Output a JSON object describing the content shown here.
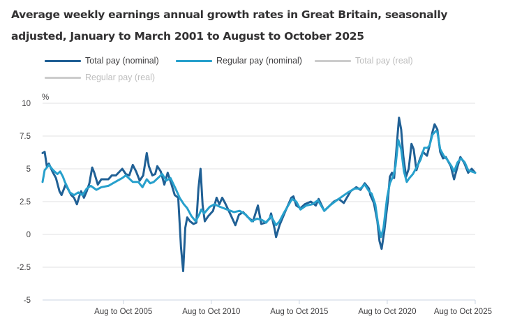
{
  "chart_data": {
    "type": "line",
    "title": "Average weekly earnings annual growth rates in Great Britain, seasonally adjusted, January to March 2001 to August to October 2025",
    "ylabel": "%",
    "xlabel": "",
    "ylim": [
      -5,
      10
    ],
    "yticks": [
      10,
      7.5,
      5,
      2.5,
      0,
      -2.5,
      -5
    ],
    "ytick_labels": [
      "10",
      "7.5",
      "5",
      "2.5",
      "0",
      "-2.5",
      "-5"
    ],
    "xlim": [
      2001.08,
      2025.67
    ],
    "xticks": [
      2005.67,
      2010.67,
      2015.67,
      2020.67,
      2025.67
    ],
    "xtick_labels": [
      "Aug to Oct 2005",
      "Aug to Oct 2010",
      "Aug to Oct 2015",
      "Aug to Oct 2020",
      "Aug to Oct 2025"
    ],
    "grid": true,
    "legend_position": "top",
    "series": [
      {
        "name": "Total pay (nominal)",
        "color": "#206095",
        "visible": true,
        "points": [
          [
            2001.08,
            6.2
          ],
          [
            2001.2,
            6.3
          ],
          [
            2001.32,
            5.2
          ],
          [
            2001.44,
            5.4
          ],
          [
            2001.64,
            4.8
          ],
          [
            2001.84,
            4.3
          ],
          [
            2002.04,
            3.3
          ],
          [
            2002.16,
            3.0
          ],
          [
            2002.39,
            3.8
          ],
          [
            2002.55,
            3.4
          ],
          [
            2002.71,
            3.0
          ],
          [
            2002.87,
            2.8
          ],
          [
            2003.03,
            2.3
          ],
          [
            2003.19,
            3.0
          ],
          [
            2003.27,
            3.3
          ],
          [
            2003.43,
            2.8
          ],
          [
            2003.59,
            3.3
          ],
          [
            2003.74,
            3.9
          ],
          [
            2003.9,
            5.1
          ],
          [
            2004.02,
            4.7
          ],
          [
            2004.22,
            3.8
          ],
          [
            2004.42,
            4.2
          ],
          [
            2004.82,
            4.2
          ],
          [
            2005.02,
            4.5
          ],
          [
            2005.25,
            4.5
          ],
          [
            2005.61,
            5.0
          ],
          [
            2005.81,
            4.6
          ],
          [
            2006.01,
            4.5
          ],
          [
            2006.21,
            5.3
          ],
          [
            2006.4,
            4.8
          ],
          [
            2006.6,
            4.1
          ],
          [
            2006.8,
            4.5
          ],
          [
            2007.0,
            6.2
          ],
          [
            2007.12,
            5.2
          ],
          [
            2007.32,
            4.5
          ],
          [
            2007.48,
            4.6
          ],
          [
            2007.6,
            5.2
          ],
          [
            2007.8,
            4.8
          ],
          [
            2008.0,
            3.8
          ],
          [
            2008.19,
            4.7
          ],
          [
            2008.39,
            3.9
          ],
          [
            2008.59,
            3.0
          ],
          [
            2008.79,
            2.8
          ],
          [
            2008.95,
            -1.0
          ],
          [
            2009.07,
            -2.8
          ],
          [
            2009.19,
            0.5
          ],
          [
            2009.3,
            1.3
          ],
          [
            2009.46,
            1.0
          ],
          [
            2009.66,
            0.8
          ],
          [
            2009.82,
            0.9
          ],
          [
            2009.94,
            3.5
          ],
          [
            2010.06,
            5.0
          ],
          [
            2010.18,
            2.2
          ],
          [
            2010.3,
            1.0
          ],
          [
            2010.5,
            1.4
          ],
          [
            2010.77,
            1.8
          ],
          [
            2010.97,
            2.8
          ],
          [
            2011.13,
            2.3
          ],
          [
            2011.29,
            2.8
          ],
          [
            2011.45,
            2.4
          ],
          [
            2011.77,
            1.5
          ],
          [
            2012.04,
            0.7
          ],
          [
            2012.24,
            1.5
          ],
          [
            2012.48,
            1.7
          ],
          [
            2012.76,
            1.3
          ],
          [
            2013.04,
            1.0
          ],
          [
            2013.32,
            2.2
          ],
          [
            2013.51,
            0.8
          ],
          [
            2013.75,
            0.9
          ],
          [
            2013.99,
            1.2
          ],
          [
            2014.07,
            1.6
          ],
          [
            2014.27,
            0.4
          ],
          [
            2014.35,
            -0.2
          ],
          [
            2014.55,
            0.7
          ],
          [
            2014.86,
            1.7
          ],
          [
            2015.22,
            2.8
          ],
          [
            2015.34,
            2.9
          ],
          [
            2015.5,
            2.2
          ],
          [
            2015.74,
            2.0
          ],
          [
            2015.98,
            2.3
          ],
          [
            2016.33,
            2.5
          ],
          [
            2016.61,
            2.2
          ],
          [
            2016.77,
            2.7
          ],
          [
            2017.09,
            1.8
          ],
          [
            2017.33,
            2.1
          ],
          [
            2017.64,
            2.5
          ],
          [
            2017.92,
            2.7
          ],
          [
            2018.2,
            2.4
          ],
          [
            2018.59,
            3.3
          ],
          [
            2018.91,
            3.6
          ],
          [
            2019.15,
            3.4
          ],
          [
            2019.39,
            3.9
          ],
          [
            2019.63,
            3.5
          ],
          [
            2019.71,
            3.0
          ],
          [
            2019.91,
            2.4
          ],
          [
            2020.11,
            1.0
          ],
          [
            2020.23,
            -0.5
          ],
          [
            2020.35,
            -1.1
          ],
          [
            2020.5,
            0.2
          ],
          [
            2020.7,
            2.5
          ],
          [
            2020.82,
            4.4
          ],
          [
            2020.94,
            4.7
          ],
          [
            2021.06,
            4.3
          ],
          [
            2021.18,
            6.3
          ],
          [
            2021.34,
            8.9
          ],
          [
            2021.46,
            8.0
          ],
          [
            2021.58,
            6.0
          ],
          [
            2021.74,
            4.4
          ],
          [
            2021.89,
            5.0
          ],
          [
            2022.05,
            6.9
          ],
          [
            2022.17,
            6.5
          ],
          [
            2022.33,
            4.9
          ],
          [
            2022.49,
            5.6
          ],
          [
            2022.69,
            6.3
          ],
          [
            2022.93,
            6.0
          ],
          [
            2023.08,
            6.8
          ],
          [
            2023.24,
            7.8
          ],
          [
            2023.36,
            8.4
          ],
          [
            2023.52,
            8.0
          ],
          [
            2023.68,
            6.3
          ],
          [
            2023.84,
            5.8
          ],
          [
            2024.0,
            5.9
          ],
          [
            2024.28,
            5.2
          ],
          [
            2024.47,
            4.2
          ],
          [
            2024.67,
            5.2
          ],
          [
            2024.83,
            5.9
          ],
          [
            2025.03,
            5.5
          ],
          [
            2025.27,
            4.7
          ],
          [
            2025.47,
            5.0
          ],
          [
            2025.67,
            4.7
          ]
        ]
      },
      {
        "name": "Regular pay (nominal)",
        "color": "#27a0cc",
        "visible": true,
        "points": [
          [
            2001.08,
            4.0
          ],
          [
            2001.2,
            4.9
          ],
          [
            2001.44,
            5.3
          ],
          [
            2001.68,
            4.9
          ],
          [
            2001.92,
            4.6
          ],
          [
            2002.08,
            4.8
          ],
          [
            2002.24,
            4.4
          ],
          [
            2002.35,
            4.0
          ],
          [
            2002.63,
            3.2
          ],
          [
            2002.87,
            3.0
          ],
          [
            2003.11,
            3.2
          ],
          [
            2003.35,
            3.0
          ],
          [
            2003.59,
            3.5
          ],
          [
            2003.82,
            3.7
          ],
          [
            2004.14,
            3.4
          ],
          [
            2004.42,
            3.6
          ],
          [
            2004.82,
            3.7
          ],
          [
            2005.21,
            4.0
          ],
          [
            2005.61,
            4.3
          ],
          [
            2005.81,
            4.5
          ],
          [
            2006.21,
            4.0
          ],
          [
            2006.52,
            4.0
          ],
          [
            2006.76,
            3.6
          ],
          [
            2007.0,
            4.2
          ],
          [
            2007.2,
            3.9
          ],
          [
            2007.4,
            4.0
          ],
          [
            2007.72,
            4.4
          ],
          [
            2007.88,
            4.6
          ],
          [
            2008.11,
            4.1
          ],
          [
            2008.35,
            4.3
          ],
          [
            2008.67,
            3.4
          ],
          [
            2008.87,
            2.8
          ],
          [
            2009.11,
            2.3
          ],
          [
            2009.3,
            2.0
          ],
          [
            2009.54,
            1.4
          ],
          [
            2009.78,
            1.0
          ],
          [
            2009.98,
            1.5
          ],
          [
            2010.1,
            1.9
          ],
          [
            2010.26,
            1.6
          ],
          [
            2010.58,
            2.1
          ],
          [
            2010.85,
            2.3
          ],
          [
            2011.17,
            2.1
          ],
          [
            2011.37,
            2.0
          ],
          [
            2011.57,
            1.9
          ],
          [
            2011.96,
            1.7
          ],
          [
            2012.28,
            1.8
          ],
          [
            2012.64,
            1.5
          ],
          [
            2012.96,
            1.0
          ],
          [
            2013.28,
            1.2
          ],
          [
            2013.55,
            1.1
          ],
          [
            2013.79,
            0.9
          ],
          [
            2014.07,
            1.4
          ],
          [
            2014.35,
            0.7
          ],
          [
            2014.55,
            1.0
          ],
          [
            2014.78,
            1.6
          ],
          [
            2015.26,
            2.7
          ],
          [
            2015.5,
            2.5
          ],
          [
            2015.74,
            1.9
          ],
          [
            2016.06,
            2.2
          ],
          [
            2016.41,
            2.3
          ],
          [
            2016.73,
            2.6
          ],
          [
            2017.09,
            1.8
          ],
          [
            2017.41,
            2.2
          ],
          [
            2017.8,
            2.6
          ],
          [
            2018.12,
            2.9
          ],
          [
            2018.44,
            3.2
          ],
          [
            2018.83,
            3.5
          ],
          [
            2019.15,
            3.5
          ],
          [
            2019.39,
            3.8
          ],
          [
            2019.63,
            3.3
          ],
          [
            2019.79,
            3.1
          ],
          [
            2019.99,
            2.3
          ],
          [
            2020.15,
            0.8
          ],
          [
            2020.31,
            -0.2
          ],
          [
            2020.46,
            0.5
          ],
          [
            2020.66,
            2.8
          ],
          [
            2020.82,
            3.9
          ],
          [
            2021.02,
            4.5
          ],
          [
            2021.14,
            5.2
          ],
          [
            2021.3,
            7.2
          ],
          [
            2021.46,
            6.5
          ],
          [
            2021.62,
            4.8
          ],
          [
            2021.78,
            4.0
          ],
          [
            2021.93,
            4.3
          ],
          [
            2022.13,
            4.6
          ],
          [
            2022.33,
            5.1
          ],
          [
            2022.57,
            5.7
          ],
          [
            2022.77,
            6.6
          ],
          [
            2022.96,
            6.6
          ],
          [
            2023.08,
            6.8
          ],
          [
            2023.24,
            7.6
          ],
          [
            2023.44,
            7.9
          ],
          [
            2023.52,
            7.8
          ],
          [
            2023.68,
            6.5
          ],
          [
            2023.88,
            6.0
          ],
          [
            2024.08,
            5.7
          ],
          [
            2024.32,
            5.2
          ],
          [
            2024.47,
            4.8
          ],
          [
            2024.67,
            5.5
          ],
          [
            2024.87,
            5.8
          ],
          [
            2025.07,
            5.5
          ],
          [
            2025.27,
            4.9
          ],
          [
            2025.47,
            4.8
          ],
          [
            2025.67,
            4.7
          ]
        ]
      },
      {
        "name": "Total pay (real)",
        "color": "#cccccc",
        "visible": false,
        "points": []
      },
      {
        "name": "Regular pay (real)",
        "color": "#cccccc",
        "visible": false,
        "points": []
      }
    ]
  },
  "legend": {
    "items": [
      {
        "label": "Total pay (nominal)",
        "color": "#206095",
        "text_color": "#414042",
        "active": true
      },
      {
        "label": "Regular pay (nominal)",
        "color": "#27a0cc",
        "text_color": "#414042",
        "active": true
      },
      {
        "label": "Total pay (real)",
        "color": "#cccccc",
        "text_color": "#bdbdbd",
        "active": false
      },
      {
        "label": "Regular pay (real)",
        "color": "#cccccc",
        "text_color": "#bdbdbd",
        "active": false
      }
    ]
  }
}
